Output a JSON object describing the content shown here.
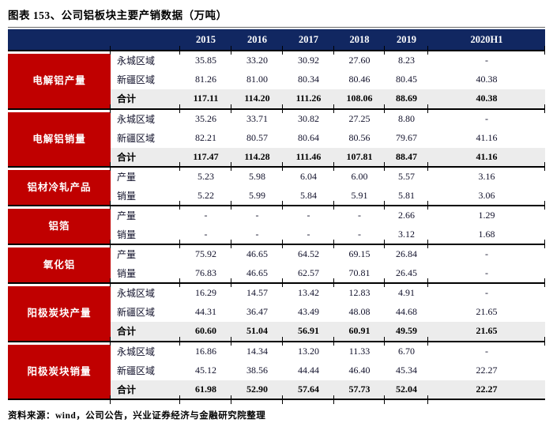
{
  "page": {
    "title": "图表 153、公司铝板块主要产销数据（万吨）",
    "source": "资料来源：wind，公司公告，兴业证券经济与金融研究院整理"
  },
  "colors": {
    "header_bg": "#112761",
    "category_bg": "#c00000",
    "total_row_bg": "#ececec",
    "rule": "#000000"
  },
  "table": {
    "year_headers": [
      "2015",
      "2016",
      "2017",
      "2018",
      "2019",
      "2020H1"
    ],
    "blocks": [
      {
        "category": "电解铝产量",
        "rows": [
          {
            "label": "永城区域",
            "total": false,
            "values": [
              "35.85",
              "33.20",
              "30.92",
              "27.60",
              "8.23",
              "-"
            ]
          },
          {
            "label": "新疆区域",
            "total": false,
            "values": [
              "81.26",
              "81.00",
              "80.34",
              "80.46",
              "80.45",
              "40.38"
            ]
          },
          {
            "label": "合计",
            "total": true,
            "values": [
              "117.11",
              "114.20",
              "111.26",
              "108.06",
              "88.69",
              "40.38"
            ]
          }
        ]
      },
      {
        "category": "电解铝销量",
        "rows": [
          {
            "label": "永城区域",
            "total": false,
            "values": [
              "35.26",
              "33.71",
              "30.82",
              "27.25",
              "8.80",
              "-"
            ]
          },
          {
            "label": "新疆区域",
            "total": false,
            "values": [
              "82.21",
              "80.57",
              "80.64",
              "80.56",
              "79.67",
              "41.16"
            ]
          },
          {
            "label": "合计",
            "total": true,
            "values": [
              "117.47",
              "114.28",
              "111.46",
              "107.81",
              "88.47",
              "41.16"
            ]
          }
        ]
      },
      {
        "category": "铝材冷轧产品",
        "rows": [
          {
            "label": "产量",
            "total": false,
            "values": [
              "5.23",
              "5.98",
              "6.04",
              "6.00",
              "5.57",
              "3.16"
            ]
          },
          {
            "label": "销量",
            "total": false,
            "values": [
              "5.22",
              "5.99",
              "5.84",
              "5.91",
              "5.81",
              "3.06"
            ]
          }
        ]
      },
      {
        "category": "铝箔",
        "rows": [
          {
            "label": "产量",
            "total": false,
            "values": [
              "-",
              "-",
              "-",
              "-",
              "2.66",
              "1.29"
            ]
          },
          {
            "label": "销量",
            "total": false,
            "values": [
              "-",
              "-",
              "-",
              "-",
              "3.12",
              "1.68"
            ]
          }
        ]
      },
      {
        "category": "氧化铝",
        "rows": [
          {
            "label": "产量",
            "total": false,
            "values": [
              "75.92",
              "46.65",
              "64.52",
              "69.15",
              "26.84",
              "-"
            ]
          },
          {
            "label": "销量",
            "total": false,
            "values": [
              "76.83",
              "46.65",
              "62.57",
              "70.81",
              "26.45",
              "-"
            ]
          }
        ]
      },
      {
        "category": "阳极炭块产量",
        "rows": [
          {
            "label": "永城区域",
            "total": false,
            "values": [
              "16.29",
              "14.57",
              "13.42",
              "12.83",
              "4.91",
              "-"
            ]
          },
          {
            "label": "新疆区域",
            "total": false,
            "values": [
              "44.31",
              "36.47",
              "43.49",
              "48.08",
              "44.68",
              "21.65"
            ]
          },
          {
            "label": "合计",
            "total": true,
            "values": [
              "60.60",
              "51.04",
              "56.91",
              "60.91",
              "49.59",
              "21.65"
            ]
          }
        ]
      },
      {
        "category": "阳极炭块销量",
        "rows": [
          {
            "label": "永城区域",
            "total": false,
            "values": [
              "16.86",
              "14.34",
              "13.20",
              "11.33",
              "6.70",
              "-"
            ]
          },
          {
            "label": "新疆区域",
            "total": false,
            "values": [
              "45.12",
              "38.56",
              "44.44",
              "46.40",
              "45.34",
              "22.27"
            ]
          },
          {
            "label": "合计",
            "total": true,
            "values": [
              "61.98",
              "52.90",
              "57.64",
              "57.73",
              "52.04",
              "22.27"
            ]
          }
        ]
      }
    ]
  }
}
